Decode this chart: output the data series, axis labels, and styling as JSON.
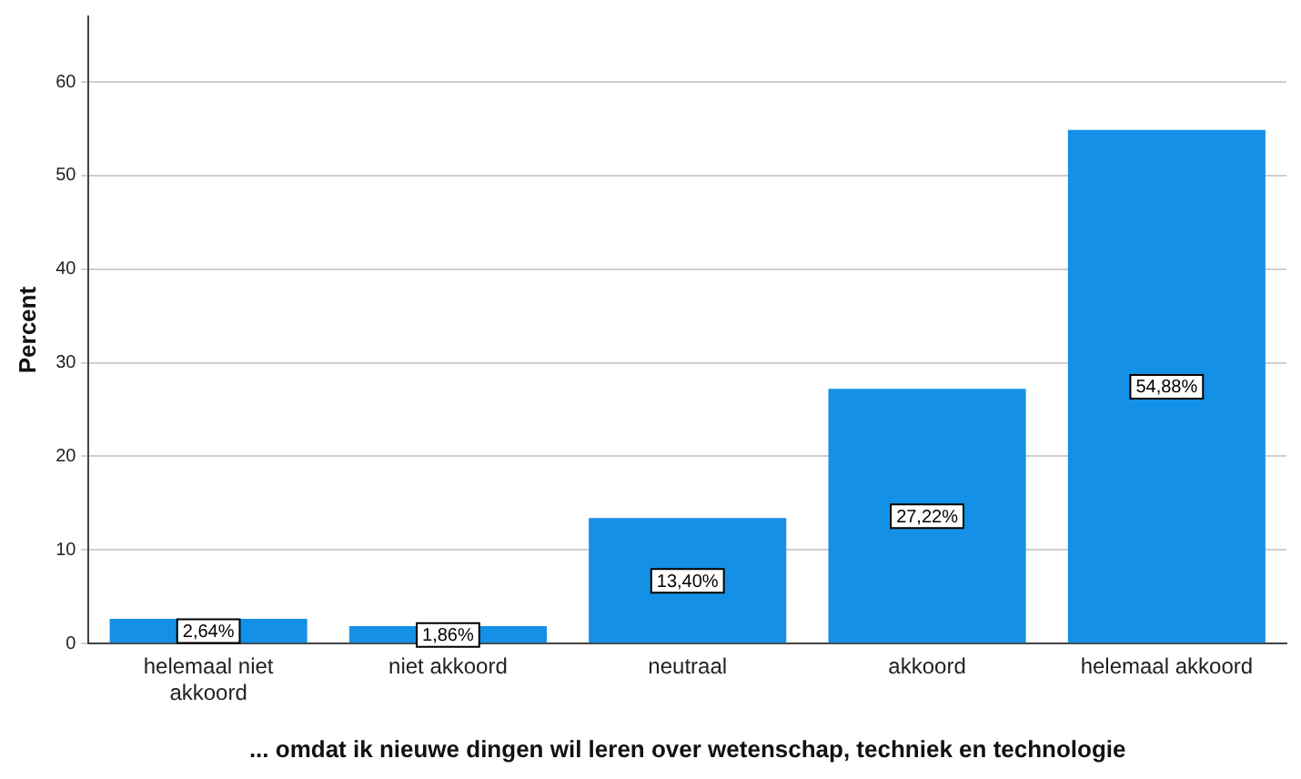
{
  "chart_data": {
    "type": "bar",
    "xlabel": "... omdat ik nieuwe dingen wil leren over wetenschap, techniek en technologie",
    "ylabel": "Percent",
    "categories": [
      "helemaal niet akkoord",
      "niet akkoord",
      "neutraal",
      "akkoord",
      "helemaal akkoord"
    ],
    "values": [
      2.64,
      1.86,
      13.4,
      27.22,
      54.88
    ],
    "value_labels": [
      "2,64%",
      "1,86%",
      "13,40%",
      "27,22%",
      "54,88%"
    ],
    "color": "#1491e6",
    "ylim": [
      0,
      67
    ],
    "yticks": [
      0,
      10,
      20,
      30,
      40,
      50,
      60
    ],
    "grid": "y",
    "legend": false
  }
}
